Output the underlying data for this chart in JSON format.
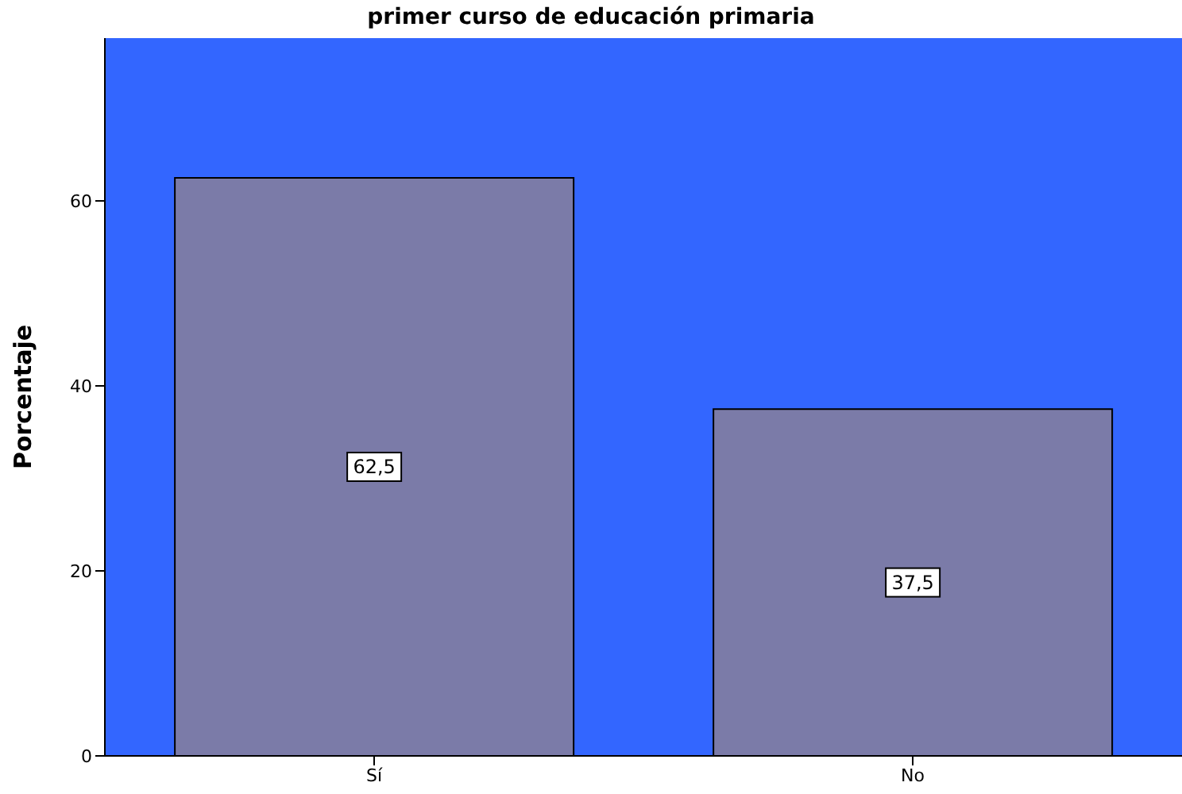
{
  "chart_data": {
    "type": "bar",
    "title": "primer curso de educación primaria",
    "ylabel": "Porcentaje",
    "categories": [
      "Sí",
      "No"
    ],
    "values": [
      62.5,
      37.5
    ],
    "value_labels": [
      "62,5",
      "37,5"
    ],
    "color": "#7b7ba8",
    "ylim": [
      0,
      77.6
    ],
    "yticks": [
      0,
      20,
      40,
      60
    ]
  }
}
